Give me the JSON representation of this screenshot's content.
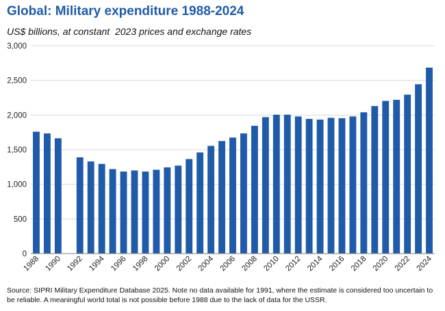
{
  "chart_data": {
    "type": "bar",
    "title": "Global: Military expenditure 1988-2024",
    "subtitle": "US$ billions, at constant  2023 prices and exchange rates",
    "xlabel": "",
    "ylabel": "",
    "ylim": [
      0,
      3000
    ],
    "yticks": [
      0,
      500,
      1000,
      1500,
      2000,
      2500,
      3000
    ],
    "ytick_labels": [
      "0",
      "500",
      "1,000",
      "1,500",
      "2,000",
      "2,500",
      "3,000"
    ],
    "grid": true,
    "bar_color": "#1f5ba8",
    "categories": [
      "1988",
      "1989",
      "1990",
      "1991",
      "1992",
      "1993",
      "1994",
      "1995",
      "1996",
      "1997",
      "1998",
      "1999",
      "2000",
      "2001",
      "2002",
      "2003",
      "2004",
      "2005",
      "2006",
      "2007",
      "2008",
      "2009",
      "2010",
      "2011",
      "2012",
      "2013",
      "2014",
      "2015",
      "2016",
      "2017",
      "2018",
      "2019",
      "2020",
      "2021",
      "2022",
      "2023",
      "2024"
    ],
    "values": [
      1760,
      1735,
      1665,
      null,
      1390,
      1330,
      1295,
      1220,
      1185,
      1200,
      1185,
      1210,
      1245,
      1270,
      1365,
      1460,
      1555,
      1625,
      1675,
      1735,
      1845,
      1970,
      2005,
      2005,
      1980,
      1945,
      1935,
      1960,
      1955,
      1980,
      2040,
      2130,
      2205,
      2220,
      2295,
      2445,
      2685
    ],
    "xtick_labels": [
      "1988",
      "",
      "1990",
      "",
      "1992",
      "",
      "1994",
      "",
      "1996",
      "",
      "1998",
      "",
      "2000",
      "",
      "2002",
      "",
      "2004",
      "",
      "2006",
      "",
      "2008",
      "",
      "2010",
      "",
      "2012",
      "",
      "2014",
      "",
      "2016",
      "",
      "2018",
      "",
      "2020",
      "",
      "2022",
      "",
      "2024"
    ],
    "source": "Source: SIPRI Military Expenditure Database 2025.  Note no data available for 1991, where the estimate is considered too uncertain to be reliable. A meaningful world total is not possible before 1988 due to the lack of data for the USSR."
  },
  "colors": {
    "accent": "#1f5ba8",
    "grid": "#d9d9d9",
    "axis": "#808080"
  }
}
